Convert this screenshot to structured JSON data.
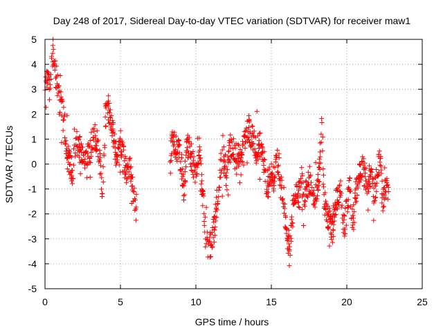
{
  "chart_data": {
    "type": "scatter",
    "title": "Day 248 of 2017, Sidereal Day-to-day VTEC variation (SDTVAR) for receiver maw1",
    "xlabel": "GPS time / hours",
    "ylabel": "SDTVAR / TECUs",
    "xlim": [
      0,
      25
    ],
    "ylim": [
      -5,
      5
    ],
    "xticks": [
      0,
      5,
      10,
      15,
      20,
      25
    ],
    "yticks": [
      -5,
      -4,
      -3,
      -2,
      -1,
      0,
      1,
      2,
      3,
      4,
      5
    ],
    "grid": true,
    "marker": "+",
    "series_color": "#ff0000",
    "series": [
      {
        "name": "SDTVAR",
        "trace": [
          [
            0.0,
            3.0
          ],
          [
            0.15,
            3.3
          ],
          [
            0.3,
            2.9
          ],
          [
            0.45,
            4.2
          ],
          [
            0.55,
            4.5
          ],
          [
            0.7,
            3.6
          ],
          [
            0.8,
            3.2
          ],
          [
            0.95,
            2.7
          ],
          [
            1.1,
            2.4
          ],
          [
            1.25,
            2.0
          ],
          [
            1.4,
            0.6
          ],
          [
            1.6,
            0.1
          ],
          [
            1.8,
            -0.3
          ],
          [
            2.0,
            0.5
          ],
          [
            2.2,
            0.9
          ],
          [
            2.4,
            0.3
          ],
          [
            2.6,
            0.0
          ],
          [
            2.8,
            0.2
          ],
          [
            3.0,
            0.6
          ],
          [
            3.2,
            1.3
          ],
          [
            3.4,
            1.0
          ],
          [
            3.6,
            0.4
          ],
          [
            3.8,
            -1.2
          ],
          [
            4.0,
            2.0
          ],
          [
            4.2,
            2.3
          ],
          [
            4.4,
            1.6
          ],
          [
            4.6,
            0.8
          ],
          [
            4.8,
            0.2
          ],
          [
            5.0,
            0.7
          ],
          [
            5.2,
            0.3
          ],
          [
            5.4,
            -0.4
          ],
          [
            5.6,
            -0.1
          ],
          [
            5.8,
            -0.8
          ],
          [
            6.0,
            -1.6
          ],
          [
            6.1,
            -1.9
          ],
          [
            8.3,
            0.6
          ],
          [
            8.5,
            0.9
          ],
          [
            8.8,
            0.5
          ],
          [
            9.0,
            0.2
          ],
          [
            9.2,
            -1.2
          ],
          [
            9.4,
            0.8
          ],
          [
            9.6,
            0.5
          ],
          [
            9.8,
            0.1
          ],
          [
            10.0,
            -0.4
          ],
          [
            10.2,
            0.6
          ],
          [
            10.4,
            -0.8
          ],
          [
            10.6,
            -2.3
          ],
          [
            10.8,
            -3.3
          ],
          [
            11.0,
            -3.2
          ],
          [
            11.2,
            -2.6
          ],
          [
            11.4,
            -1.6
          ],
          [
            11.6,
            -0.2
          ],
          [
            11.8,
            0.3
          ],
          [
            12.0,
            -0.2
          ],
          [
            12.2,
            0.5
          ],
          [
            12.4,
            0.9
          ],
          [
            12.6,
            0.3
          ],
          [
            12.8,
            0.5
          ],
          [
            13.0,
            0.2
          ],
          [
            13.2,
            0.8
          ],
          [
            13.4,
            1.4
          ],
          [
            13.6,
            1.3
          ],
          [
            13.8,
            0.9
          ],
          [
            14.0,
            0.4
          ],
          [
            14.2,
            1.0
          ],
          [
            14.4,
            0.3
          ],
          [
            14.6,
            -0.6
          ],
          [
            14.8,
            -0.8
          ],
          [
            15.0,
            -0.3
          ],
          [
            15.2,
            -0.6
          ],
          [
            15.4,
            0.2
          ],
          [
            15.6,
            -0.8
          ],
          [
            15.8,
            -1.6
          ],
          [
            16.0,
            -2.6
          ],
          [
            16.2,
            -3.6
          ],
          [
            16.4,
            -2.0
          ],
          [
            16.6,
            -1.0
          ],
          [
            16.8,
            -1.2
          ],
          [
            17.0,
            -0.6
          ],
          [
            17.2,
            -1.4
          ],
          [
            17.4,
            -0.8
          ],
          [
            17.6,
            -0.6
          ],
          [
            17.8,
            -1.3
          ],
          [
            18.0,
            -1.4
          ],
          [
            18.2,
            -0.2
          ],
          [
            18.35,
            1.8
          ],
          [
            18.5,
            -1.5
          ],
          [
            18.7,
            -2.0
          ],
          [
            19.0,
            -2.5
          ],
          [
            19.3,
            -1.5
          ],
          [
            19.6,
            -1.0
          ],
          [
            19.8,
            -2.7
          ],
          [
            20.0,
            -1.8
          ],
          [
            20.2,
            -1.0
          ],
          [
            20.4,
            -2.5
          ],
          [
            20.6,
            -1.2
          ],
          [
            20.8,
            -0.5
          ],
          [
            21.0,
            -0.2
          ],
          [
            21.2,
            -0.4
          ],
          [
            21.4,
            -0.9
          ],
          [
            21.6,
            -0.3
          ],
          [
            21.8,
            -1.2
          ],
          [
            22.0,
            -0.5
          ],
          [
            22.2,
            0.4
          ],
          [
            22.4,
            -1.6
          ],
          [
            22.6,
            -1.0
          ],
          [
            22.8,
            -0.8
          ]
        ]
      }
    ]
  }
}
